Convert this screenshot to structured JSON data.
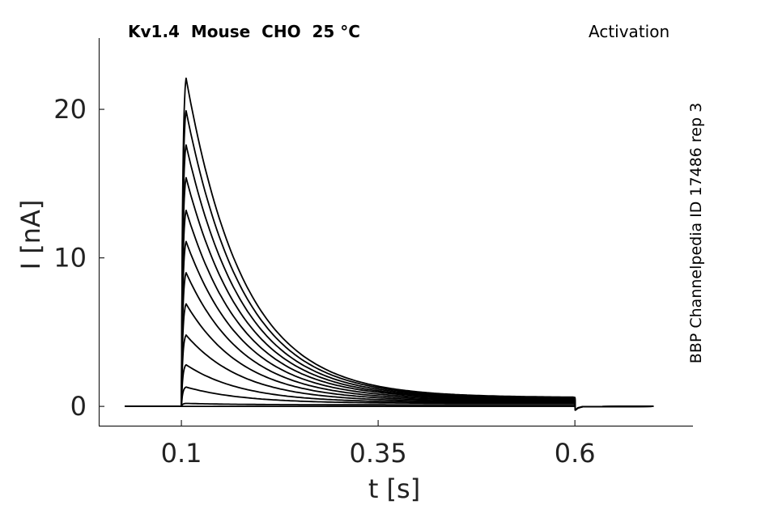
{
  "header": {
    "title": "Kv1.4  Mouse  CHO  25 °C",
    "protocol": "Activation",
    "source": "BBP Channelpedia ID 17486 rep 3"
  },
  "chart_data": {
    "type": "line",
    "xlabel": "t [s]",
    "ylabel": "I [nA]",
    "xlim": [
      -0.005,
      0.75
    ],
    "ylim": [
      -1.3,
      24.8
    ],
    "xticks": [
      {
        "value": 0.1,
        "label": "0.1"
      },
      {
        "value": 0.35,
        "label": "0.35"
      },
      {
        "value": 0.6,
        "label": "0.6"
      }
    ],
    "yticks": [
      {
        "value": 0,
        "label": "0"
      },
      {
        "value": 10,
        "label": "10"
      },
      {
        "value": 20,
        "label": "20"
      }
    ],
    "grid": false,
    "color": "#000000",
    "step_on": 0.1,
    "step_off": 0.6,
    "t_start": 0.028,
    "t_end": 0.7,
    "peaks": [
      0.0,
      0.2,
      1.3,
      2.8,
      4.8,
      6.9,
      9.0,
      11.1,
      13.2,
      15.4,
      17.6,
      19.9,
      22.1
    ],
    "end_values": [
      0.0,
      0.1,
      0.2,
      0.25,
      0.3,
      0.35,
      0.4,
      0.45,
      0.5,
      0.52,
      0.55,
      0.58,
      0.6
    ]
  }
}
